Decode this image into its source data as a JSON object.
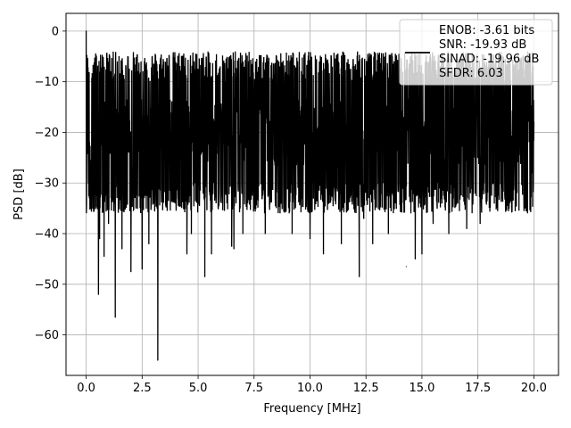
{
  "chart_data": {
    "type": "line",
    "title": "",
    "xlabel": "Frequency [MHz]",
    "ylabel": "PSD [dB]",
    "xlim": [
      -0.9,
      21.1
    ],
    "ylim": [
      -68,
      3.5
    ],
    "xticks": [
      0.0,
      2.5,
      5.0,
      7.5,
      10.0,
      12.5,
      15.0,
      17.5,
      20.0
    ],
    "xtick_labels": [
      "0.0",
      "2.5",
      "5.0",
      "7.5",
      "10.0",
      "12.5",
      "15.0",
      "17.5",
      "20.0"
    ],
    "yticks": [
      0,
      -10,
      -20,
      -30,
      -40,
      -50,
      -60
    ],
    "ytick_labels": [
      "0",
      "−10",
      "−20",
      "−30",
      "−40",
      "−50",
      "−60"
    ],
    "grid": true,
    "legend_position": "top-right",
    "legend_lines": [
      "ENOB: -3.61 bits",
      "SNR: -19.93 dB",
      "SINAD: -19.96 dB",
      "SFDR: 6.03"
    ],
    "series": [
      {
        "color": "#000000",
        "noise_band": {
          "x_start": 0.0,
          "x_end": 20.0,
          "y_mid": -20,
          "y_top": -10,
          "y_bottom": -30
        },
        "points": [
          [
            0.0,
            0.0
          ],
          [
            0.03,
            -12
          ],
          [
            0.06,
            -9
          ],
          [
            0.1,
            -30
          ],
          [
            0.15,
            -22
          ],
          [
            0.2,
            -32
          ],
          [
            0.35,
            -35.5
          ],
          [
            0.55,
            -52
          ],
          [
            0.6,
            -41
          ],
          [
            0.8,
            -44.5
          ],
          [
            1.0,
            -38
          ],
          [
            1.3,
            -56.5
          ],
          [
            1.6,
            -43
          ],
          [
            2.0,
            -47.5
          ],
          [
            2.5,
            -47
          ],
          [
            2.8,
            -42
          ],
          [
            3.2,
            -65
          ],
          [
            4.5,
            -44
          ],
          [
            4.7,
            -40
          ],
          [
            5.3,
            -48.5
          ],
          [
            5.6,
            -44
          ],
          [
            6.5,
            -42.5
          ],
          [
            6.6,
            -43
          ],
          [
            7.0,
            -40
          ],
          [
            8.0,
            -40
          ],
          [
            9.2,
            -40
          ],
          [
            10.0,
            -41
          ],
          [
            10.6,
            -44
          ],
          [
            11.4,
            -42
          ],
          [
            12.2,
            -48.5
          ],
          [
            12.4,
            -37
          ],
          [
            12.8,
            -42
          ],
          [
            13.5,
            -40
          ],
          [
            14.3,
            -46.5
          ],
          [
            14.7,
            -45
          ],
          [
            15.0,
            -44
          ],
          [
            15.5,
            -38
          ],
          [
            16.2,
            -40
          ],
          [
            17.0,
            -39
          ],
          [
            17.6,
            -38
          ],
          [
            18.6,
            -33
          ],
          [
            18.9,
            -32
          ],
          [
            19.9,
            -28
          ],
          [
            19.95,
            -12
          ],
          [
            20.0,
            -18
          ],
          [
            17.3,
            -7.5
          ],
          [
            14.3,
            -7.5
          ],
          [
            11.1,
            -8
          ],
          [
            8.8,
            -8.5
          ],
          [
            6.2,
            -10
          ]
        ]
      }
    ]
  }
}
